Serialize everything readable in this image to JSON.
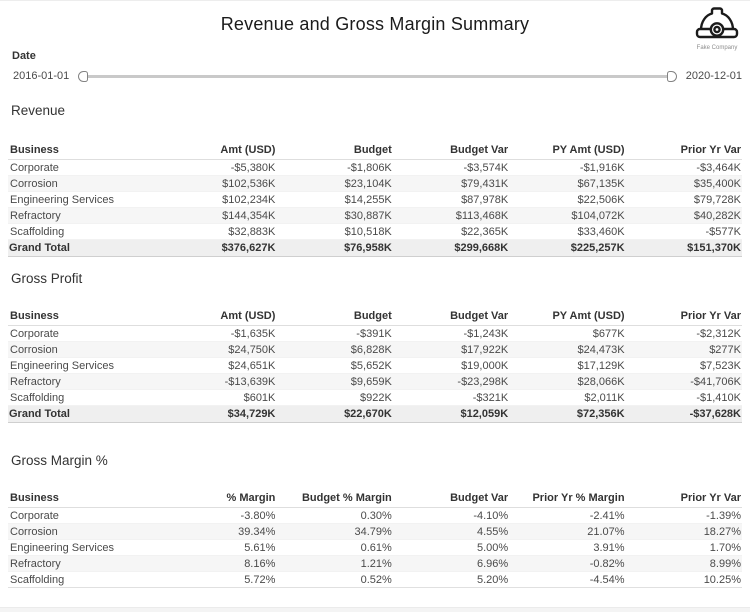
{
  "page": {
    "title": "Revenue and Gross Margin Summary",
    "logo_caption": "Fake Company"
  },
  "filter": {
    "label": "Date",
    "start_value": "2016-01-01",
    "end_value": "2020-12-01"
  },
  "colors": {
    "title_text": "#1b1b1b",
    "body_text": "#4a4a4a",
    "header_text": "#333333",
    "row_stripe": "#f6f6f6",
    "grand_total_bg": "#efefef",
    "slider_track": "#c9c9c9"
  },
  "sections": [
    {
      "title": "Revenue",
      "columns": [
        "Business",
        "Amt (USD)",
        "Budget",
        "Budget Var",
        "PY Amt (USD)",
        "Prior Yr Var"
      ],
      "rows": [
        [
          "Corporate",
          "-$5,380K",
          "-$1,806K",
          "-$3,574K",
          "-$1,916K",
          "-$3,464K"
        ],
        [
          "Corrosion",
          "$102,536K",
          "$23,104K",
          "$79,431K",
          "$67,135K",
          "$35,400K"
        ],
        [
          "Engineering Services",
          "$102,234K",
          "$14,255K",
          "$87,978K",
          "$22,506K",
          "$79,728K"
        ],
        [
          "Refractory",
          "$144,354K",
          "$30,887K",
          "$113,468K",
          "$104,072K",
          "$40,282K"
        ],
        [
          "Scaffolding",
          "$32,883K",
          "$10,518K",
          "$22,365K",
          "$33,460K",
          "-$577K"
        ]
      ],
      "total": [
        "Grand Total",
        "$376,627K",
        "$76,958K",
        "$299,668K",
        "$225,257K",
        "$151,370K"
      ]
    },
    {
      "title": "Gross Profit",
      "columns": [
        "Business",
        "Amt (USD)",
        "Budget",
        "Budget Var",
        "PY Amt (USD)",
        "Prior Yr Var"
      ],
      "rows": [
        [
          "Corporate",
          "-$1,635K",
          "-$391K",
          "-$1,243K",
          "$677K",
          "-$2,312K"
        ],
        [
          "Corrosion",
          "$24,750K",
          "$6,828K",
          "$17,922K",
          "$24,473K",
          "$277K"
        ],
        [
          "Engineering Services",
          "$24,651K",
          "$5,652K",
          "$19,000K",
          "$17,129K",
          "$7,523K"
        ],
        [
          "Refractory",
          "-$13,639K",
          "$9,659K",
          "-$23,298K",
          "$28,066K",
          "-$41,706K"
        ],
        [
          "Scaffolding",
          "$601K",
          "$922K",
          "-$321K",
          "$2,011K",
          "-$1,410K"
        ]
      ],
      "total": [
        "Grand Total",
        "$34,729K",
        "$22,670K",
        "$12,059K",
        "$72,356K",
        "-$37,628K"
      ]
    },
    {
      "title": "Gross Margin %",
      "columns": [
        "Business",
        "% Margin",
        "Budget % Margin",
        "Budget Var",
        "Prior Yr % Margin",
        "Prior Yr Var"
      ],
      "rows": [
        [
          "Corporate",
          "-3.80%",
          "0.30%",
          "-4.10%",
          "-2.41%",
          "-1.39%"
        ],
        [
          "Corrosion",
          "39.34%",
          "34.79%",
          "4.55%",
          "21.07%",
          "18.27%"
        ],
        [
          "Engineering Services",
          "5.61%",
          "0.61%",
          "5.00%",
          "3.91%",
          "1.70%"
        ],
        [
          "Refractory",
          "8.16%",
          "1.21%",
          "6.96%",
          "-0.82%",
          "8.99%"
        ],
        [
          "Scaffolding",
          "5.72%",
          "0.52%",
          "5.20%",
          "-4.54%",
          "10.25%"
        ]
      ]
    }
  ]
}
